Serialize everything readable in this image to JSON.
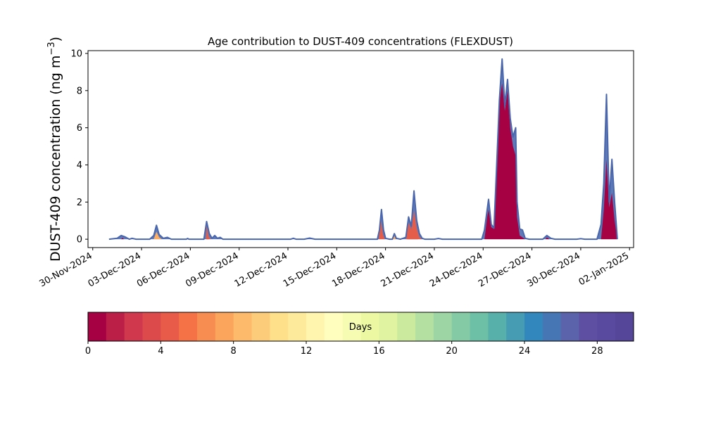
{
  "chart_data": {
    "type": "area",
    "title": "Age contribution to DUST-409 concentrations (FLEXDUST)",
    "ylabel": "DUST-409 concentration (ng m",
    "ylabel_sup": "−3",
    "ylabel_close": ")",
    "xlabel": "",
    "ylim": [
      -0.45,
      10.15
    ],
    "yticks": [
      0,
      2,
      4,
      6,
      8,
      10
    ],
    "xlim": [
      "2024-11-29T17:00",
      "2025-01-02T06:00"
    ],
    "xticks": [
      "2024-11-30",
      "2024-12-03",
      "2024-12-06",
      "2024-12-09",
      "2024-12-12",
      "2024-12-15",
      "2024-12-18",
      "2024-12-21",
      "2024-12-24",
      "2024-12-27",
      "2024-12-30",
      "2025-01-02"
    ],
    "xtick_labels": [
      "30-Nov-2024",
      "03-Dec-2024",
      "06-Dec-2024",
      "09-Dec-2024",
      "12-Dec-2024",
      "15-Dec-2024",
      "18-Dec-2024",
      "21-Dec-2024",
      "24-Dec-2024",
      "27-Dec-2024",
      "30-Dec-2024",
      "02-Jan-2025"
    ],
    "grid": false,
    "total": {
      "name": "",
      "color": "#4a66ad",
      "points": [
        [
          "2024-12-01T00:00",
          0.0
        ],
        [
          "2024-12-01T12:00",
          0.05
        ],
        [
          "2024-12-01T18:00",
          0.2
        ],
        [
          "2024-12-02T00:00",
          0.12
        ],
        [
          "2024-12-02T06:00",
          0.0
        ],
        [
          "2024-12-02T10:00",
          0.05
        ],
        [
          "2024-12-02T16:00",
          0.0
        ],
        [
          "2024-12-03T12:00",
          0.0
        ],
        [
          "2024-12-03T18:00",
          0.2
        ],
        [
          "2024-12-03T22:00",
          0.75
        ],
        [
          "2024-12-04T02:00",
          0.25
        ],
        [
          "2024-12-04T08:00",
          0.05
        ],
        [
          "2024-12-04T14:00",
          0.1
        ],
        [
          "2024-12-04T20:00",
          0.0
        ],
        [
          "2024-12-05T18:00",
          0.0
        ],
        [
          "2024-12-05T20:00",
          0.04
        ],
        [
          "2024-12-05T22:00",
          0.0
        ],
        [
          "2024-12-06T20:00",
          0.0
        ],
        [
          "2024-12-07T00:00",
          0.95
        ],
        [
          "2024-12-07T04:00",
          0.3
        ],
        [
          "2024-12-07T08:00",
          0.05
        ],
        [
          "2024-12-07T12:00",
          0.2
        ],
        [
          "2024-12-07T16:00",
          0.05
        ],
        [
          "2024-12-07T20:00",
          0.1
        ],
        [
          "2024-12-08T00:00",
          0.0
        ],
        [
          "2024-12-12T04:00",
          0.0
        ],
        [
          "2024-12-12T08:00",
          0.05
        ],
        [
          "2024-12-12T12:00",
          0.0
        ],
        [
          "2024-12-13T00:00",
          0.0
        ],
        [
          "2024-12-13T08:00",
          0.06
        ],
        [
          "2024-12-13T16:00",
          0.0
        ],
        [
          "2024-12-17T12:00",
          0.0
        ],
        [
          "2024-12-17T15:00",
          0.5
        ],
        [
          "2024-12-17T18:00",
          1.6
        ],
        [
          "2024-12-17T21:00",
          0.5
        ],
        [
          "2024-12-18T00:00",
          0.05
        ],
        [
          "2024-12-18T06:00",
          0.0
        ],
        [
          "2024-12-18T10:00",
          0.0
        ],
        [
          "2024-12-18T13:00",
          0.3
        ],
        [
          "2024-12-18T16:00",
          0.05
        ],
        [
          "2024-12-18T22:00",
          0.0
        ],
        [
          "2024-12-19T06:00",
          0.1
        ],
        [
          "2024-12-19T10:00",
          1.2
        ],
        [
          "2024-12-19T14:00",
          0.7
        ],
        [
          "2024-12-19T18:00",
          2.6
        ],
        [
          "2024-12-19T22:00",
          1.0
        ],
        [
          "2024-12-20T02:00",
          0.3
        ],
        [
          "2024-12-20T06:00",
          0.05
        ],
        [
          "2024-12-20T10:00",
          0.0
        ],
        [
          "2024-12-21T00:00",
          0.0
        ],
        [
          "2024-12-21T06:00",
          0.04
        ],
        [
          "2024-12-21T12:00",
          0.0
        ],
        [
          "2024-12-23T22:00",
          0.0
        ],
        [
          "2024-12-24T02:00",
          0.5
        ],
        [
          "2024-12-24T06:00",
          1.6
        ],
        [
          "2024-12-24T08:00",
          2.15
        ],
        [
          "2024-12-24T12:00",
          0.8
        ],
        [
          "2024-12-24T16:00",
          0.6
        ],
        [
          "2024-12-24T20:00",
          4.0
        ],
        [
          "2024-12-25T00:00",
          7.5
        ],
        [
          "2024-12-25T04:00",
          9.7
        ],
        [
          "2024-12-25T08:00",
          7.2
        ],
        [
          "2024-12-25T12:00",
          8.6
        ],
        [
          "2024-12-25T16:00",
          6.5
        ],
        [
          "2024-12-25T20:00",
          5.5
        ],
        [
          "2024-12-26T00:00",
          6.0
        ],
        [
          "2024-12-26T02:00",
          2.0
        ],
        [
          "2024-12-26T06:00",
          0.55
        ],
        [
          "2024-12-26T10:00",
          0.5
        ],
        [
          "2024-12-26T14:00",
          0.05
        ],
        [
          "2024-12-26T20:00",
          0.0
        ],
        [
          "2024-12-27T16:00",
          0.0
        ],
        [
          "2024-12-27T22:00",
          0.2
        ],
        [
          "2024-12-28T04:00",
          0.05
        ],
        [
          "2024-12-28T10:00",
          0.0
        ],
        [
          "2024-12-29T18:00",
          0.0
        ],
        [
          "2024-12-30T00:00",
          0.03
        ],
        [
          "2024-12-30T06:00",
          0.0
        ],
        [
          "2024-12-31T00:00",
          0.0
        ],
        [
          "2024-12-31T06:00",
          0.8
        ],
        [
          "2024-12-31T10:00",
          3.0
        ],
        [
          "2024-12-31T14:00",
          7.8
        ],
        [
          "2024-12-31T18:00",
          2.0
        ],
        [
          "2024-12-31T22:00",
          4.3
        ],
        [
          "2025-01-01T02:00",
          2.0
        ],
        [
          "2025-01-01T06:00",
          0.0
        ]
      ]
    },
    "age_bands": [
      {
        "name": "",
        "color": "#a50143",
        "points": [
          [
            "2024-12-01T18:00",
            0.0
          ],
          [
            "2024-12-01T20:00",
            0.08
          ],
          [
            "2024-12-01T22:00",
            0.0
          ],
          [
            "2024-12-07T00:00",
            0.0
          ],
          [
            "2024-12-07T01:00",
            0.45
          ],
          [
            "2024-12-07T03:00",
            0.0
          ],
          [
            "2024-12-19T08:00",
            0.0
          ],
          [
            "2024-12-19T10:00",
            0.3
          ],
          [
            "2024-12-19T12:00",
            0.2
          ],
          [
            "2024-12-19T16:00",
            0.3
          ],
          [
            "2024-12-19T20:00",
            0.1
          ],
          [
            "2024-12-20T00:00",
            0.0
          ],
          [
            "2024-12-24T02:00",
            0.0
          ],
          [
            "2024-12-24T06:00",
            1.2
          ],
          [
            "2024-12-24T08:00",
            1.6
          ],
          [
            "2024-12-24T12:00",
            0.65
          ],
          [
            "2024-12-24T16:00",
            0.55
          ],
          [
            "2024-12-24T20:00",
            3.6
          ],
          [
            "2024-12-25T00:00",
            7.3
          ],
          [
            "2024-12-25T04:00",
            8.4
          ],
          [
            "2024-12-25T08:00",
            6.9
          ],
          [
            "2024-12-25T12:00",
            8.0
          ],
          [
            "2024-12-25T16:00",
            6.0
          ],
          [
            "2024-12-25T20:00",
            5.0
          ],
          [
            "2024-12-26T00:00",
            4.5
          ],
          [
            "2024-12-26T02:00",
            1.2
          ],
          [
            "2024-12-26T06:00",
            0.2
          ],
          [
            "2024-12-26T10:00",
            0.1
          ],
          [
            "2024-12-26T14:00",
            0.0
          ],
          [
            "2024-12-27T20:00",
            0.0
          ],
          [
            "2024-12-27T22:00",
            0.1
          ],
          [
            "2024-12-28T02:00",
            0.0
          ],
          [
            "2024-12-31T06:00",
            0.0
          ],
          [
            "2024-12-31T10:00",
            1.6
          ],
          [
            "2024-12-31T14:00",
            4.3
          ],
          [
            "2024-12-31T18:00",
            1.7
          ],
          [
            "2024-12-31T22:00",
            2.5
          ],
          [
            "2025-01-01T02:00",
            1.0
          ],
          [
            "2025-01-01T06:00",
            0.0
          ]
        ]
      },
      {
        "name": "",
        "color": "#e35d4a",
        "points": [
          [
            "2024-12-06T23:00",
            0.0
          ],
          [
            "2024-12-07T00:00",
            0.75
          ],
          [
            "2024-12-07T03:00",
            0.15
          ],
          [
            "2024-12-07T06:00",
            0.0
          ],
          [
            "2024-12-17T14:00",
            0.0
          ],
          [
            "2024-12-17T17:00",
            1.1
          ],
          [
            "2024-12-17T20:00",
            0.3
          ],
          [
            "2024-12-17T23:00",
            0.0
          ],
          [
            "2024-12-19T06:00",
            0.0
          ],
          [
            "2024-12-19T10:00",
            0.9
          ],
          [
            "2024-12-19T14:00",
            0.5
          ],
          [
            "2024-12-19T18:00",
            1.55
          ],
          [
            "2024-12-19T22:00",
            0.6
          ],
          [
            "2024-12-20T02:00",
            0.1
          ],
          [
            "2024-12-20T06:00",
            0.0
          ]
        ]
      },
      {
        "name": "",
        "color": "#fdae61",
        "points": [
          [
            "2024-12-03T18:00",
            0.0
          ],
          [
            "2024-12-03T22:00",
            0.4
          ],
          [
            "2024-12-04T02:00",
            0.1
          ],
          [
            "2024-12-04T06:00",
            0.0
          ],
          [
            "2024-12-18T11:00",
            0.0
          ],
          [
            "2024-12-18T13:00",
            0.2
          ],
          [
            "2024-12-18T15:00",
            0.0
          ]
        ]
      }
    ],
    "colorbar": {
      "label": "Days",
      "min": 0,
      "max": 30,
      "ticks": [
        0,
        4,
        8,
        12,
        16,
        20,
        24,
        28
      ],
      "colors": [
        "#a50143",
        "#bb1f48",
        "#d0384e",
        "#dd4a4c",
        "#e85b49",
        "#f47245",
        "#f88d52",
        "#fba45c",
        "#fdba6b",
        "#fdcc7a",
        "#fee08b",
        "#feea9b",
        "#fff5ae",
        "#fffebe",
        "#f7fcb3",
        "#edf8a3",
        "#e0f3a1",
        "#cbea9d",
        "#b4e0a2",
        "#9dd5a4",
        "#84cba5",
        "#6dc0a5",
        "#58b0ab",
        "#459cb3",
        "#3288bd",
        "#4776b4",
        "#5b63aa",
        "#5e4fa2",
        "#5a4a9f",
        "#554699"
      ]
    }
  }
}
